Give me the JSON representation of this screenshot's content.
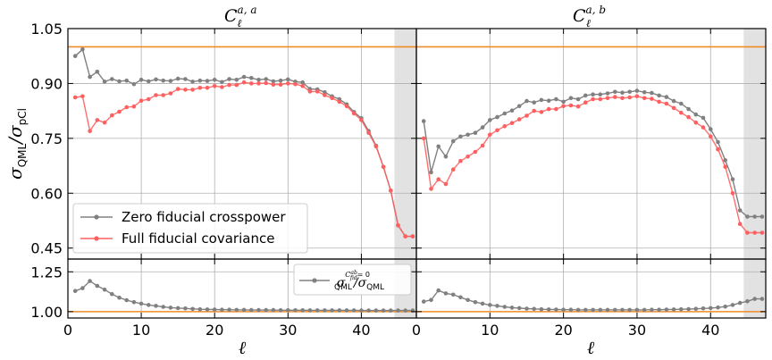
{
  "chart_data": {
    "type": "line",
    "panels": [
      {
        "title_main": "C",
        "title_sub": "ℓ",
        "title_sup": "a, a",
        "ylabel_sigma1": "σ",
        "ylabel_sub1": "QML",
        "ylabel_sigma2": "/σ",
        "ylabel_sub2": "pCl",
        "ylim": [
          0.42,
          1.05
        ],
        "yticks": [
          "0.45",
          "0.60",
          "0.75",
          "0.90",
          "1.05"
        ],
        "xlim": [
          0,
          47.5
        ],
        "shaded_x": [
          44.5,
          48
        ],
        "reference_line": 1.0,
        "legend_position": "lower-left",
        "series": [
          {
            "name": "Zero fiducial crosspower",
            "color": "#808080",
            "x": [
              1,
              2,
              3,
              4,
              5,
              6,
              7,
              8,
              9,
              10,
              11,
              12,
              13,
              14,
              15,
              16,
              17,
              18,
              19,
              20,
              21,
              22,
              23,
              24,
              25,
              26,
              27,
              28,
              29,
              30,
              31,
              32,
              33,
              34,
              35,
              36,
              37,
              38,
              39,
              40,
              41,
              42,
              43,
              44,
              45,
              46,
              47
            ],
            "y": [
              0.975,
              0.993,
              0.918,
              0.932,
              0.905,
              0.912,
              0.906,
              0.908,
              0.898,
              0.91,
              0.906,
              0.911,
              0.908,
              0.907,
              0.913,
              0.912,
              0.905,
              0.908,
              0.907,
              0.91,
              0.904,
              0.912,
              0.91,
              0.918,
              0.915,
              0.91,
              0.912,
              0.906,
              0.908,
              0.911,
              0.905,
              0.903,
              0.885,
              0.884,
              0.876,
              0.865,
              0.857,
              0.843,
              0.822,
              0.805,
              0.77,
              0.73,
              0.672,
              0.607,
              0.512,
              0.482,
              0.482
            ]
          },
          {
            "name": "Full fiducial covariance",
            "color": "#ff5f5f",
            "x": [
              1,
              2,
              3,
              4,
              5,
              6,
              7,
              8,
              9,
              10,
              11,
              12,
              13,
              14,
              15,
              16,
              17,
              18,
              19,
              20,
              21,
              22,
              23,
              24,
              25,
              26,
              27,
              28,
              29,
              30,
              31,
              32,
              33,
              34,
              35,
              36,
              37,
              38,
              39,
              40,
              41,
              42,
              43,
              44,
              45,
              46,
              47
            ],
            "y": [
              0.862,
              0.865,
              0.77,
              0.8,
              0.793,
              0.813,
              0.823,
              0.835,
              0.837,
              0.853,
              0.857,
              0.868,
              0.868,
              0.873,
              0.885,
              0.883,
              0.883,
              0.888,
              0.888,
              0.893,
              0.89,
              0.896,
              0.896,
              0.903,
              0.9,
              0.9,
              0.901,
              0.897,
              0.897,
              0.9,
              0.898,
              0.893,
              0.878,
              0.878,
              0.868,
              0.86,
              0.85,
              0.838,
              0.818,
              0.8,
              0.765,
              0.728,
              0.672,
              0.607,
              0.512,
              0.482,
              0.482
            ]
          }
        ],
        "ratio": {
          "ylim": [
            0.96,
            1.33
          ],
          "yticks": [
            "1.00",
            "1.25"
          ],
          "reference_line": 1.0,
          "color": "#808080",
          "legend_position": "top-right",
          "legend_sigma1": "σ",
          "legend_sup1": "C",
          "legend_supsup": "ab",
          "legend_supsub": "fid",
          "legend_sup2": "= 0",
          "legend_sub1": "QML",
          "legend_sigma2": "/σ",
          "legend_sub2": "QML",
          "x": [
            1,
            2,
            3,
            4,
            5,
            6,
            7,
            8,
            9,
            10,
            11,
            12,
            13,
            14,
            15,
            16,
            17,
            18,
            19,
            20,
            21,
            22,
            23,
            24,
            25,
            26,
            27,
            28,
            29,
            30,
            31,
            32,
            33,
            34,
            35,
            36,
            37,
            38,
            39,
            40,
            41,
            42,
            43,
            44,
            45,
            46,
            47
          ],
          "y": [
            1.13,
            1.147,
            1.192,
            1.162,
            1.138,
            1.11,
            1.088,
            1.072,
            1.06,
            1.05,
            1.042,
            1.036,
            1.03,
            1.025,
            1.022,
            1.02,
            1.017,
            1.015,
            1.014,
            1.013,
            1.012,
            1.012,
            1.011,
            1.011,
            1.01,
            1.01,
            1.01,
            1.01,
            1.009,
            1.009,
            1.009,
            1.009,
            1.008,
            1.008,
            1.008,
            1.008,
            1.008,
            1.008,
            1.008,
            1.007,
            1.007,
            1.007,
            1.007,
            1.007,
            1.007,
            1.007,
            1.007
          ]
        }
      },
      {
        "title_main": "C",
        "title_sub": "ℓ",
        "title_sup": "a, b",
        "ylim": [
          0.42,
          1.05
        ],
        "xlim": [
          0,
          47.5
        ],
        "shaded_x": [
          44.5,
          48
        ],
        "reference_line": 1.0,
        "series": [
          {
            "name": "Zero fiducial crosspower",
            "color": "#808080",
            "x": [
              1,
              2,
              3,
              4,
              5,
              6,
              7,
              8,
              9,
              10,
              11,
              12,
              13,
              14,
              15,
              16,
              17,
              18,
              19,
              20,
              21,
              22,
              23,
              24,
              25,
              26,
              27,
              28,
              29,
              30,
              31,
              32,
              33,
              34,
              35,
              36,
              37,
              38,
              39,
              40,
              41,
              42,
              43,
              44,
              45,
              46,
              47
            ],
            "y": [
              0.797,
              0.657,
              0.728,
              0.7,
              0.742,
              0.755,
              0.76,
              0.765,
              0.78,
              0.8,
              0.808,
              0.818,
              0.826,
              0.838,
              0.852,
              0.848,
              0.855,
              0.853,
              0.857,
              0.85,
              0.86,
              0.857,
              0.867,
              0.87,
              0.87,
              0.873,
              0.877,
              0.875,
              0.877,
              0.88,
              0.876,
              0.874,
              0.867,
              0.863,
              0.852,
              0.845,
              0.83,
              0.815,
              0.806,
              0.775,
              0.74,
              0.69,
              0.638,
              0.553,
              0.536,
              0.536,
              0.536
            ]
          },
          {
            "name": "Full fiducial covariance",
            "color": "#ff5f5f",
            "x": [
              1,
              2,
              3,
              4,
              5,
              6,
              7,
              8,
              9,
              10,
              11,
              12,
              13,
              14,
              15,
              16,
              17,
              18,
              19,
              20,
              21,
              22,
              23,
              24,
              25,
              26,
              27,
              28,
              29,
              30,
              31,
              32,
              33,
              34,
              35,
              36,
              37,
              38,
              39,
              40,
              41,
              42,
              43,
              44,
              45,
              46,
              47
            ],
            "y": [
              0.75,
              0.612,
              0.638,
              0.625,
              0.665,
              0.688,
              0.7,
              0.713,
              0.73,
              0.76,
              0.772,
              0.783,
              0.792,
              0.802,
              0.812,
              0.825,
              0.822,
              0.83,
              0.83,
              0.838,
              0.84,
              0.837,
              0.848,
              0.857,
              0.857,
              0.86,
              0.863,
              0.86,
              0.862,
              0.865,
              0.86,
              0.858,
              0.85,
              0.845,
              0.833,
              0.82,
              0.808,
              0.793,
              0.78,
              0.755,
              0.72,
              0.672,
              0.6,
              0.516,
              0.492,
              0.492,
              0.492
            ]
          }
        ],
        "ratio": {
          "ylim": [
            0.96,
            1.33
          ],
          "reference_line": 1.0,
          "color": "#808080",
          "x": [
            1,
            2,
            3,
            4,
            5,
            6,
            7,
            8,
            9,
            10,
            11,
            12,
            13,
            14,
            15,
            16,
            17,
            18,
            19,
            20,
            21,
            22,
            23,
            24,
            25,
            26,
            27,
            28,
            29,
            30,
            31,
            32,
            33,
            34,
            35,
            36,
            37,
            38,
            39,
            40,
            41,
            42,
            43,
            44,
            45,
            46,
            47
          ],
          "y": [
            1.063,
            1.073,
            1.133,
            1.115,
            1.107,
            1.09,
            1.073,
            1.06,
            1.05,
            1.042,
            1.036,
            1.03,
            1.025,
            1.022,
            1.019,
            1.017,
            1.015,
            1.014,
            1.013,
            1.012,
            1.012,
            1.011,
            1.011,
            1.011,
            1.011,
            1.011,
            1.011,
            1.011,
            1.011,
            1.011,
            1.011,
            1.012,
            1.012,
            1.013,
            1.014,
            1.015,
            1.016,
            1.018,
            1.02,
            1.022,
            1.026,
            1.032,
            1.042,
            1.055,
            1.065,
            1.08,
            1.08
          ]
        }
      }
    ],
    "xlabel": "ℓ",
    "xticks": [
      "0",
      "10",
      "20",
      "30",
      "40"
    ],
    "reference_color": "#f08c28",
    "shade_color": "#e2e2e2",
    "grid": true
  }
}
